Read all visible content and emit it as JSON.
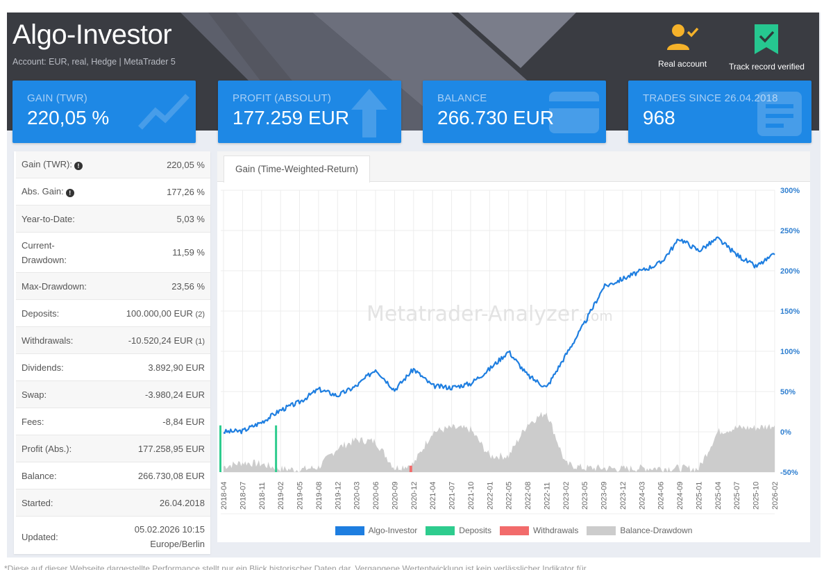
{
  "header": {
    "title": "Algo-Investor",
    "subtitle": "Account: EUR,  real, Hedge | MetaTrader 5",
    "badges": [
      {
        "icon": "user-check-icon",
        "label": "Real account",
        "color": "#f5b22a"
      },
      {
        "icon": "bookmark-check-icon",
        "label": "Track record verified",
        "color": "#26c790"
      }
    ]
  },
  "cards": [
    {
      "label": "GAIN (TWR)",
      "value": "220,05 %",
      "icon": "trending-up-icon"
    },
    {
      "label": "PROFIT (ABSOLUT)",
      "value": "177.259 EUR",
      "icon": "arrow-up-icon"
    },
    {
      "label": "BALANCE",
      "value": "266.730 EUR",
      "icon": "credit-card-icon"
    },
    {
      "label": "TRADES SINCE 26.04.2018",
      "value": "968",
      "icon": "document-icon"
    }
  ],
  "stats": [
    {
      "key": "Gain (TWR):",
      "value": "220,05 %",
      "info": true
    },
    {
      "key": "Abs. Gain:",
      "value": "177,26 %",
      "info": true
    },
    {
      "key": "Year-to-Date:",
      "value": "5,03 %"
    },
    {
      "key": "Current-Drawdown:",
      "key_line1": "Current-",
      "key_line2": "Drawdown:",
      "value": "11,59 %"
    },
    {
      "key": "Max-Drawdown:",
      "value": "23,56 %"
    },
    {
      "key": "Deposits:",
      "value": "100.000,00 EUR",
      "suffix": "(2)"
    },
    {
      "key": "Withdrawals:",
      "value": "-10.520,24 EUR",
      "suffix": "(1)"
    },
    {
      "key": "Dividends:",
      "value": "3.892,90 EUR"
    },
    {
      "key": "Swap:",
      "value": "-3.980,24 EUR"
    },
    {
      "key": "Fees:",
      "value": "-8,84 EUR"
    },
    {
      "key": "Profit (Abs.):",
      "value": "177.258,95 EUR"
    },
    {
      "key": "Balance:",
      "value": "266.730,08 EUR"
    },
    {
      "key": "Started:",
      "value": "26.04.2018"
    },
    {
      "key": "Updated:",
      "value": "05.02.2026 10:15",
      "value_line2": "Europe/Berlin"
    }
  ],
  "chart": {
    "tab_label": "Gain (Time-Weighted-Return)",
    "watermark": "Metatrader-Analyzer",
    "watermark_suffix": ".com",
    "y_ticks": [
      "300%",
      "250%",
      "200%",
      "150%",
      "100%",
      "50%",
      "0%",
      "-50%"
    ],
    "x_ticks": [
      "2018-04",
      "2018-07",
      "2018-11",
      "2019-02",
      "2019-05",
      "2019-08",
      "2019-12",
      "2020-03",
      "2020-06",
      "2020-09",
      "2020-12",
      "2021-04",
      "2021-07",
      "2021-10",
      "2022-01",
      "2022-05",
      "2022-08",
      "2022-11",
      "2023-02",
      "2023-05",
      "2023-09",
      "2023-12",
      "2024-03",
      "2024-06",
      "2024-09",
      "2025-01",
      "2025-04",
      "2025-07",
      "2025-10",
      "2026-02"
    ],
    "legend": [
      {
        "label": "Algo-Investor",
        "color": "#1e7ee0"
      },
      {
        "label": "Deposits",
        "color": "#2ecc8e"
      },
      {
        "label": "Withdrawals",
        "color": "#f26b6b"
      },
      {
        "label": "Balance-Drawdown",
        "color": "#cccccc"
      }
    ]
  },
  "chart_data": {
    "type": "line",
    "title": "Gain (Time-Weighted-Return)",
    "xlabel": "",
    "ylabel": "",
    "ylim": [
      -50,
      300
    ],
    "grid": true,
    "legend_position": "bottom",
    "categories": [
      "2018-04",
      "2018-07",
      "2018-11",
      "2019-02",
      "2019-05",
      "2019-08",
      "2019-12",
      "2020-03",
      "2020-06",
      "2020-09",
      "2020-12",
      "2021-04",
      "2021-07",
      "2021-10",
      "2022-01",
      "2022-05",
      "2022-08",
      "2022-11",
      "2023-02",
      "2023-05",
      "2023-09",
      "2023-12",
      "2024-03",
      "2024-06",
      "2024-09",
      "2025-01",
      "2025-04",
      "2025-07",
      "2025-10",
      "2026-02"
    ],
    "series": [
      {
        "name": "Algo-Investor",
        "values": [
          0,
          1,
          12,
          27,
          37,
          53,
          45,
          57,
          78,
          52,
          78,
          57,
          55,
          60,
          78,
          100,
          70,
          55,
          95,
          135,
          180,
          190,
          200,
          210,
          240,
          225,
          240,
          220,
          205,
          220
        ]
      },
      {
        "name": "Balance-Drawdown",
        "values": [
          -43,
          -38,
          -40,
          -46,
          -47,
          -44,
          -20,
          -10,
          -12,
          -45,
          -40,
          0,
          5,
          3,
          -30,
          -30,
          10,
          25,
          -40,
          -45,
          -45,
          -46,
          -45,
          -45,
          -45,
          -46,
          0,
          5,
          5,
          8
        ]
      },
      {
        "name": "Deposits",
        "values": [
          8,
          0,
          0,
          8,
          0,
          0,
          0,
          0,
          0,
          0,
          0,
          0,
          0,
          0,
          0,
          0,
          0,
          0,
          0,
          0,
          0,
          0,
          0,
          0,
          0,
          0,
          0,
          0,
          0,
          0
        ]
      },
      {
        "name": "Withdrawals",
        "values": [
          0,
          0,
          0,
          0,
          0,
          0,
          0,
          0,
          0,
          0,
          -42,
          0,
          0,
          0,
          0,
          0,
          0,
          0,
          0,
          0,
          0,
          0,
          0,
          0,
          0,
          0,
          0,
          0,
          0,
          0
        ]
      }
    ]
  },
  "footer": {
    "note": "*Diese auf dieser Webseite dargestellte Performance stellt nur ein Blick historischer Daten dar. Vergangene Wertentwicklung ist kein verlässlicher Indikator für..."
  }
}
